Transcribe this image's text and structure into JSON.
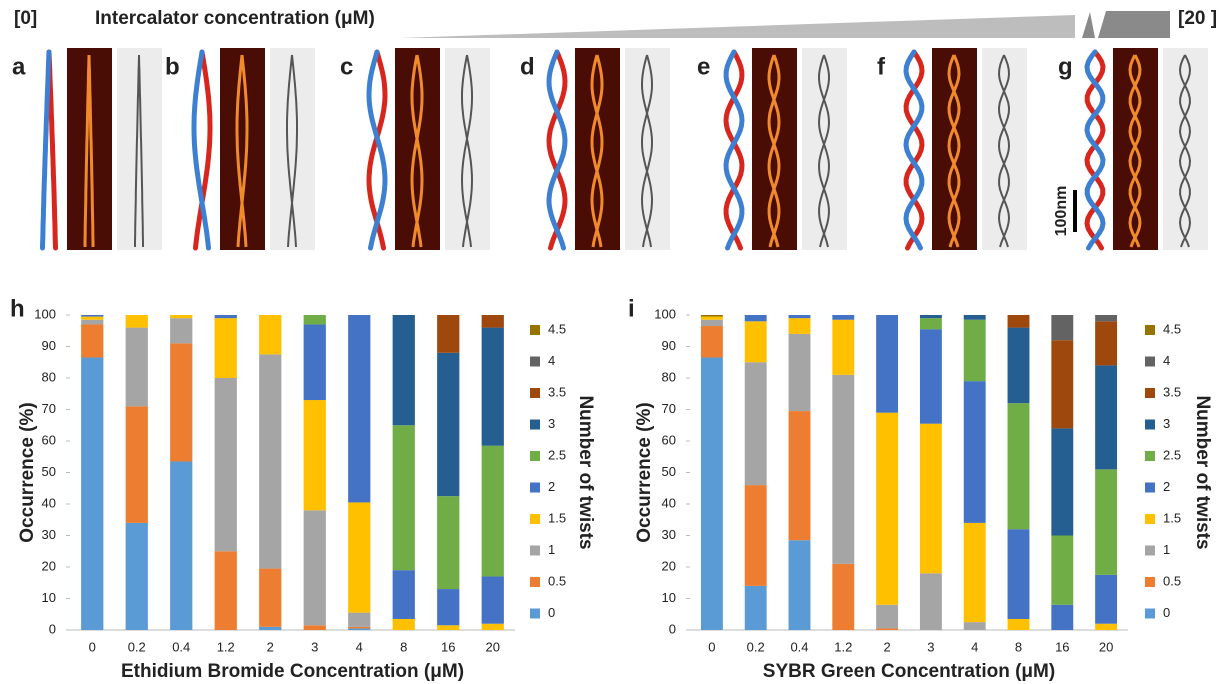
{
  "header": {
    "left": "[0]",
    "title": "Intercalator concentration (μM)",
    "right": "[20 ]"
  },
  "panels": [
    "a",
    "b",
    "c",
    "d",
    "e",
    "f",
    "g"
  ],
  "scale_bar": "100nm",
  "chart_data": [
    {
      "type": "bar",
      "stacked": true,
      "panel": "h",
      "x_label": "Ethidium Bromide Concentration (μM)",
      "y_label": "Occurrence (%)",
      "legend_title": "Number of twists",
      "categories": [
        "0",
        "0.2",
        "0.4",
        "1.2",
        "2",
        "3",
        "4",
        "8",
        "16",
        "20"
      ],
      "ylim": [
        0,
        100
      ],
      "yticks": [
        0,
        10,
        20,
        30,
        40,
        50,
        60,
        70,
        80,
        90,
        100
      ],
      "legend": "right",
      "series": [
        {
          "name": "0",
          "color": "#5b9bd5",
          "values": [
            86.5,
            34,
            53.5,
            0,
            1,
            0,
            0.5,
            0,
            0,
            0
          ]
        },
        {
          "name": "0.5",
          "color": "#ed7d31",
          "values": [
            10.5,
            37,
            37.5,
            25,
            18.5,
            1.5,
            0.5,
            0,
            0,
            0
          ]
        },
        {
          "name": "1",
          "color": "#a5a5a5",
          "values": [
            1.5,
            25,
            8,
            55,
            68,
            36.5,
            4.5,
            0,
            0,
            0
          ]
        },
        {
          "name": "1.5",
          "color": "#ffc000",
          "values": [
            1,
            4,
            1,
            19,
            12.5,
            35,
            35,
            3.5,
            1.5,
            2
          ]
        },
        {
          "name": "2",
          "color": "#4472c4",
          "values": [
            0.5,
            0,
            0,
            1,
            0,
            24,
            59.5,
            15.5,
            11.5,
            15
          ]
        },
        {
          "name": "2.5",
          "color": "#70ad47",
          "values": [
            0,
            0,
            0,
            0,
            0,
            3,
            0,
            46,
            29.5,
            41.5
          ]
        },
        {
          "name": "3",
          "color": "#255e91",
          "values": [
            0,
            0,
            0,
            0,
            0,
            0,
            0,
            35,
            45.5,
            37.5
          ]
        },
        {
          "name": "3.5",
          "color": "#9e480e",
          "values": [
            0,
            0,
            0,
            0,
            0,
            0,
            0,
            0,
            12,
            4
          ]
        },
        {
          "name": "4",
          "color": "#636363",
          "values": [
            0,
            0,
            0,
            0,
            0,
            0,
            0,
            0,
            0,
            0
          ]
        },
        {
          "name": "4.5",
          "color": "#997300",
          "values": [
            0,
            0,
            0,
            0,
            0,
            0,
            0,
            0,
            0,
            0
          ]
        }
      ]
    },
    {
      "type": "bar",
      "stacked": true,
      "panel": "i",
      "x_label": "SYBR Green Concentration (μM)",
      "y_label": "Occurrence (%)",
      "legend_title": "Number of twists",
      "categories": [
        "0",
        "0.2",
        "0.4",
        "1.2",
        "2",
        "3",
        "4",
        "8",
        "16",
        "20"
      ],
      "ylim": [
        0,
        100
      ],
      "yticks": [
        0,
        10,
        20,
        30,
        40,
        50,
        60,
        70,
        80,
        90,
        100
      ],
      "legend": "right",
      "series": [
        {
          "name": "0",
          "color": "#5b9bd5",
          "values": [
            86.5,
            14,
            28.5,
            0,
            0,
            0,
            0,
            0,
            0,
            0
          ]
        },
        {
          "name": "0.5",
          "color": "#ed7d31",
          "values": [
            10,
            32,
            41,
            21,
            0.5,
            0,
            0,
            0,
            0,
            0
          ]
        },
        {
          "name": "1",
          "color": "#a5a5a5",
          "values": [
            2,
            39,
            24.5,
            60,
            7.5,
            18,
            2.5,
            0,
            0,
            0
          ]
        },
        {
          "name": "1.5",
          "color": "#ffc000",
          "values": [
            1,
            13,
            5,
            17.5,
            61,
            47.5,
            31.5,
            3.5,
            0,
            2
          ]
        },
        {
          "name": "2",
          "color": "#4472c4",
          "values": [
            0,
            2,
            1,
            1.5,
            31,
            30,
            45,
            28.5,
            8,
            15.5
          ]
        },
        {
          "name": "2.5",
          "color": "#70ad47",
          "values": [
            0,
            0,
            0,
            0,
            0,
            3.5,
            19.5,
            40,
            22,
            33.5
          ]
        },
        {
          "name": "3",
          "color": "#255e91",
          "values": [
            0,
            0,
            0,
            0,
            0,
            1,
            1.5,
            24,
            34,
            33
          ]
        },
        {
          "name": "3.5",
          "color": "#9e480e",
          "values": [
            0,
            0,
            0,
            0,
            0,
            0,
            0,
            4,
            28,
            14
          ]
        },
        {
          "name": "4",
          "color": "#636363",
          "values": [
            0,
            0,
            0,
            0,
            0,
            0,
            0,
            0,
            8,
            2
          ]
        },
        {
          "name": "4.5",
          "color": "#997300",
          "values": [
            0.5,
            0,
            0,
            0,
            0,
            0,
            0,
            0,
            0,
            0
          ]
        }
      ]
    }
  ]
}
